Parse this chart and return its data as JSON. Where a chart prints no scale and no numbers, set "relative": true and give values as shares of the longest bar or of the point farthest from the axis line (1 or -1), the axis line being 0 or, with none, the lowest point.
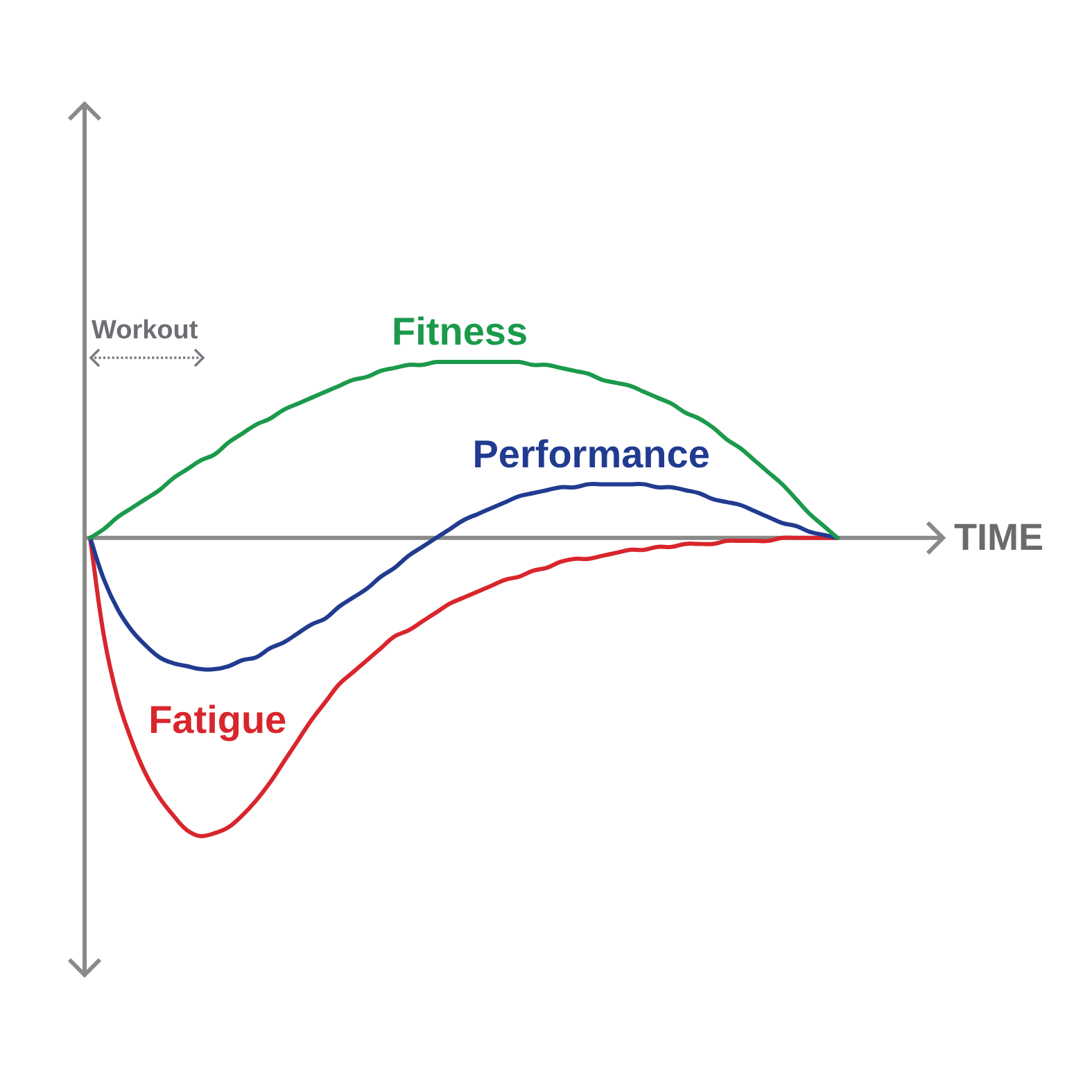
{
  "chart_data": {
    "type": "line",
    "relative": true,
    "xlabel": "TIME",
    "annotations": [
      "Workout"
    ],
    "legend": false,
    "marker": "none",
    "line_style": "solid",
    "categories": [
      null,
      null,
      null,
      null,
      null,
      null,
      null,
      null,
      null,
      null,
      null,
      null,
      null,
      null,
      null,
      null,
      null,
      null,
      null,
      null,
      null,
      null,
      null,
      null,
      null,
      null,
      null,
      null,
      null,
      null,
      null,
      null,
      null,
      null,
      null,
      null,
      null,
      null,
      null,
      null,
      null,
      null,
      null,
      null,
      null,
      null,
      null,
      null,
      null,
      null,
      null,
      null,
      null,
      null,
      null
    ],
    "series": [
      {
        "name": "Fitness",
        "color": "#1b9a4b",
        "values": [
          0,
          0.03,
          0.07,
          0.1,
          0.13,
          0.16,
          0.2,
          0.23,
          0.26,
          0.28,
          0.32,
          0.35,
          0.38,
          0.4,
          0.43,
          0.45,
          0.47,
          0.49,
          0.51,
          0.53,
          0.54,
          0.56,
          0.57,
          0.58,
          0.58,
          0.59,
          0.59,
          0.59,
          0.59,
          0.59,
          0.59,
          0.59,
          0.58,
          0.58,
          0.57,
          0.56,
          0.55,
          0.53,
          0.52,
          0.51,
          0.49,
          0.47,
          0.45,
          0.42,
          0.4,
          0.37,
          0.33,
          0.3,
          0.26,
          0.22,
          0.18,
          0.13,
          0.08,
          0.04,
          0
        ]
      },
      {
        "name": "Performance",
        "color": "#213b90",
        "values": [
          0,
          -0.14,
          -0.24,
          -0.31,
          -0.36,
          -0.4,
          -0.42,
          -0.43,
          -0.44,
          -0.44,
          -0.43,
          -0.41,
          -0.4,
          -0.37,
          -0.35,
          -0.32,
          -0.29,
          -0.27,
          -0.23,
          -0.2,
          -0.17,
          -0.13,
          -0.1,
          -0.06,
          -0.03,
          0,
          0.03,
          0.06,
          0.08,
          0.1,
          0.12,
          0.14,
          0.15,
          0.16,
          0.17,
          0.17,
          0.18,
          0.18,
          0.18,
          0.18,
          0.18,
          0.17,
          0.17,
          0.16,
          0.15,
          0.13,
          0.12,
          0.11,
          0.09,
          0.07,
          0.05,
          0.04,
          0.02,
          0.01,
          0
        ]
      },
      {
        "name": "Fatigue",
        "color": "#d8262c",
        "values": [
          0,
          -0.33,
          -0.54,
          -0.68,
          -0.79,
          -0.87,
          -0.93,
          -0.98,
          -1,
          -0.99,
          -0.97,
          -0.93,
          -0.88,
          -0.82,
          -0.75,
          -0.68,
          -0.61,
          -0.55,
          -0.49,
          -0.45,
          -0.41,
          -0.37,
          -0.33,
          -0.31,
          -0.28,
          -0.25,
          -0.22,
          -0.2,
          -0.18,
          -0.16,
          -0.14,
          -0.13,
          -0.11,
          -0.1,
          -0.08,
          -0.07,
          -0.07,
          -0.06,
          -0.05,
          -0.04,
          -0.04,
          -0.03,
          -0.03,
          -0.02,
          -0.02,
          -0.02,
          -0.01,
          -0.01,
          -0.01,
          -0.01,
          0,
          0,
          0,
          0,
          0
        ]
      }
    ]
  }
}
